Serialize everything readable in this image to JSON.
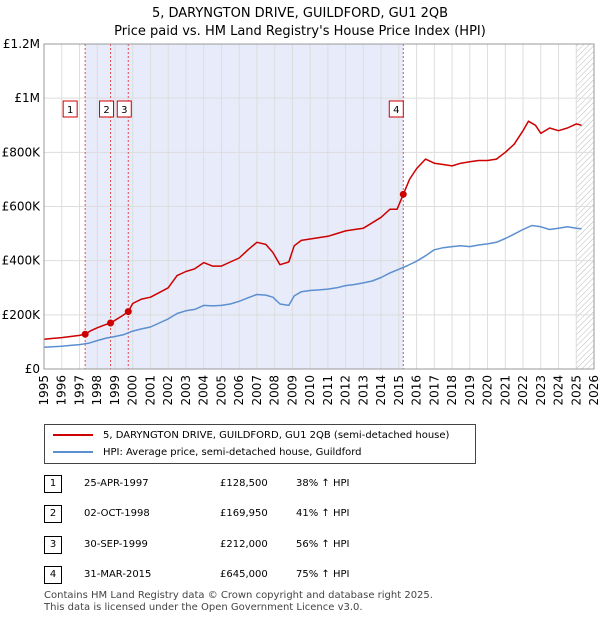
{
  "title": "5, DARYNGTON DRIVE, GUILDFORD, GU1 2QB",
  "subtitle": "Price paid vs. HM Land Registry's House Price Index (HPI)",
  "legend": {
    "property": "5, DARYNGTON DRIVE, GUILDFORD, GU1 2QB (semi-detached house)",
    "hpi": "HPI: Average price, semi-detached house, Guildford"
  },
  "transactions": [
    {
      "num": "1",
      "date": "25-APR-1997",
      "price": "£128,500",
      "hpi": "38% ↑ HPI"
    },
    {
      "num": "2",
      "date": "02-OCT-1998",
      "price": "£169,950",
      "hpi": "41% ↑ HPI"
    },
    {
      "num": "3",
      "date": "30-SEP-1999",
      "price": "£212,000",
      "hpi": "56% ↑ HPI"
    },
    {
      "num": "4",
      "date": "31-MAR-2015",
      "price": "£645,000",
      "hpi": "75% ↑ HPI"
    }
  ],
  "footer": {
    "line1": "Contains HM Land Registry data © Crown copyright and database right 2025.",
    "line2": "This data is licensed under the Open Government Licence v3.0."
  },
  "colors": {
    "property": "#cc0000",
    "hpi": "#5b8fd0",
    "highlight": "#e8ecfa",
    "grid": "#dddddd",
    "marker_line": "#e05050"
  },
  "chart_data": {
    "type": "line",
    "title": "5, DARYNGTON DRIVE, GUILDFORD, GU1 2QB",
    "subtitle": "Price paid vs. HM Land Registry's House Price Index (HPI)",
    "xlabel": "",
    "ylabel": "",
    "xlim": [
      1995,
      2026
    ],
    "ylim": [
      0,
      1200000
    ],
    "y_ticks": [
      {
        "value": 0,
        "label": "£0"
      },
      {
        "value": 200000,
        "label": "£200K"
      },
      {
        "value": 400000,
        "label": "£400K"
      },
      {
        "value": 600000,
        "label": "£600K"
      },
      {
        "value": 800000,
        "label": "£800K"
      },
      {
        "value": 1000000,
        "label": "£1M"
      },
      {
        "value": 1200000,
        "label": "£1.2M"
      }
    ],
    "x_ticks": [
      "1995",
      "1996",
      "1997",
      "1998",
      "1999",
      "2000",
      "2001",
      "2002",
      "2003",
      "2004",
      "2005",
      "2006",
      "2007",
      "2008",
      "2009",
      "2010",
      "2011",
      "2012",
      "2013",
      "2014",
      "2015",
      "2016",
      "2017",
      "2018",
      "2019",
      "2020",
      "2021",
      "2022",
      "2023",
      "2024",
      "2025",
      "2026"
    ],
    "grid": true,
    "shaded_range": [
      1997.32,
      2015.25
    ],
    "projection_start": 2025.0,
    "series": [
      {
        "name": "5, DARYNGTON DRIVE, GUILDFORD, GU1 2QB (semi-detached house)",
        "x": [
          1995.0,
          1995.5,
          1996.0,
          1996.5,
          1997.0,
          1997.32,
          1997.6,
          1998.0,
          1998.4,
          1998.75,
          1999.0,
          1999.4,
          1999.75,
          2000.0,
          2000.5,
          2001.0,
          2001.5,
          2002.0,
          2002.5,
          2003.0,
          2003.5,
          2004.0,
          2004.5,
          2005.0,
          2005.5,
          2006.0,
          2006.5,
          2007.0,
          2007.5,
          2007.9,
          2008.3,
          2008.8,
          2009.1,
          2009.5,
          2010.0,
          2010.5,
          2011.0,
          2011.5,
          2012.0,
          2012.5,
          2013.0,
          2013.5,
          2014.0,
          2014.5,
          2014.9,
          2015.25,
          2015.6,
          2016.0,
          2016.5,
          2017.0,
          2017.5,
          2018.0,
          2018.5,
          2019.0,
          2019.5,
          2020.0,
          2020.5,
          2021.0,
          2021.5,
          2022.0,
          2022.3,
          2022.7,
          2023.0,
          2023.5,
          2024.0,
          2024.5,
          2025.0,
          2025.3
        ],
        "values": [
          110000,
          113000,
          116000,
          120000,
          124000,
          128500,
          140000,
          152000,
          162000,
          169950,
          180000,
          196000,
          212000,
          242000,
          258000,
          265000,
          282000,
          300000,
          345000,
          360000,
          370000,
          393000,
          380000,
          380000,
          395000,
          410000,
          440000,
          468000,
          460000,
          430000,
          385000,
          395000,
          455000,
          475000,
          480000,
          485000,
          490000,
          500000,
          510000,
          515000,
          520000,
          540000,
          560000,
          590000,
          590000,
          645000,
          700000,
          740000,
          775000,
          760000,
          755000,
          750000,
          760000,
          765000,
          770000,
          770000,
          775000,
          800000,
          830000,
          880000,
          915000,
          900000,
          870000,
          890000,
          880000,
          890000,
          905000,
          900000
        ]
      },
      {
        "name": "HPI: Average price, semi-detached house, Guildford",
        "x": [
          1995.0,
          1995.5,
          1996.0,
          1996.5,
          1997.0,
          1997.5,
          1998.0,
          1998.5,
          1999.0,
          1999.5,
          2000.0,
          2000.5,
          2001.0,
          2001.5,
          2002.0,
          2002.5,
          2003.0,
          2003.5,
          2004.0,
          2004.5,
          2005.0,
          2005.5,
          2006.0,
          2006.5,
          2007.0,
          2007.5,
          2007.9,
          2008.3,
          2008.8,
          2009.1,
          2009.5,
          2010.0,
          2010.5,
          2011.0,
          2011.5,
          2012.0,
          2012.5,
          2013.0,
          2013.5,
          2014.0,
          2014.5,
          2015.0,
          2015.5,
          2016.0,
          2016.5,
          2017.0,
          2017.5,
          2018.0,
          2018.5,
          2019.0,
          2019.5,
          2020.0,
          2020.5,
          2021.0,
          2021.5,
          2022.0,
          2022.5,
          2023.0,
          2023.5,
          2024.0,
          2024.5,
          2025.0,
          2025.3
        ],
        "values": [
          80000,
          82000,
          84000,
          87000,
          90000,
          95000,
          105000,
          114000,
          120000,
          127000,
          140000,
          148000,
          155000,
          170000,
          185000,
          205000,
          215000,
          220000,
          235000,
          233000,
          235000,
          240000,
          250000,
          263000,
          275000,
          273000,
          265000,
          240000,
          235000,
          270000,
          285000,
          290000,
          292000,
          295000,
          300000,
          308000,
          312000,
          318000,
          325000,
          338000,
          355000,
          368000,
          382000,
          398000,
          418000,
          440000,
          448000,
          452000,
          455000,
          452000,
          458000,
          462000,
          468000,
          482000,
          498000,
          515000,
          530000,
          525000,
          515000,
          520000,
          525000,
          520000,
          518000
        ]
      }
    ],
    "annotations": [
      {
        "label": "1",
        "x": 1997.32,
        "y": 128500
      },
      {
        "label": "2",
        "x": 1998.75,
        "y": 169950
      },
      {
        "label": "3",
        "x": 1999.75,
        "y": 212000
      },
      {
        "label": "4",
        "x": 2015.25,
        "y": 645000
      }
    ]
  }
}
